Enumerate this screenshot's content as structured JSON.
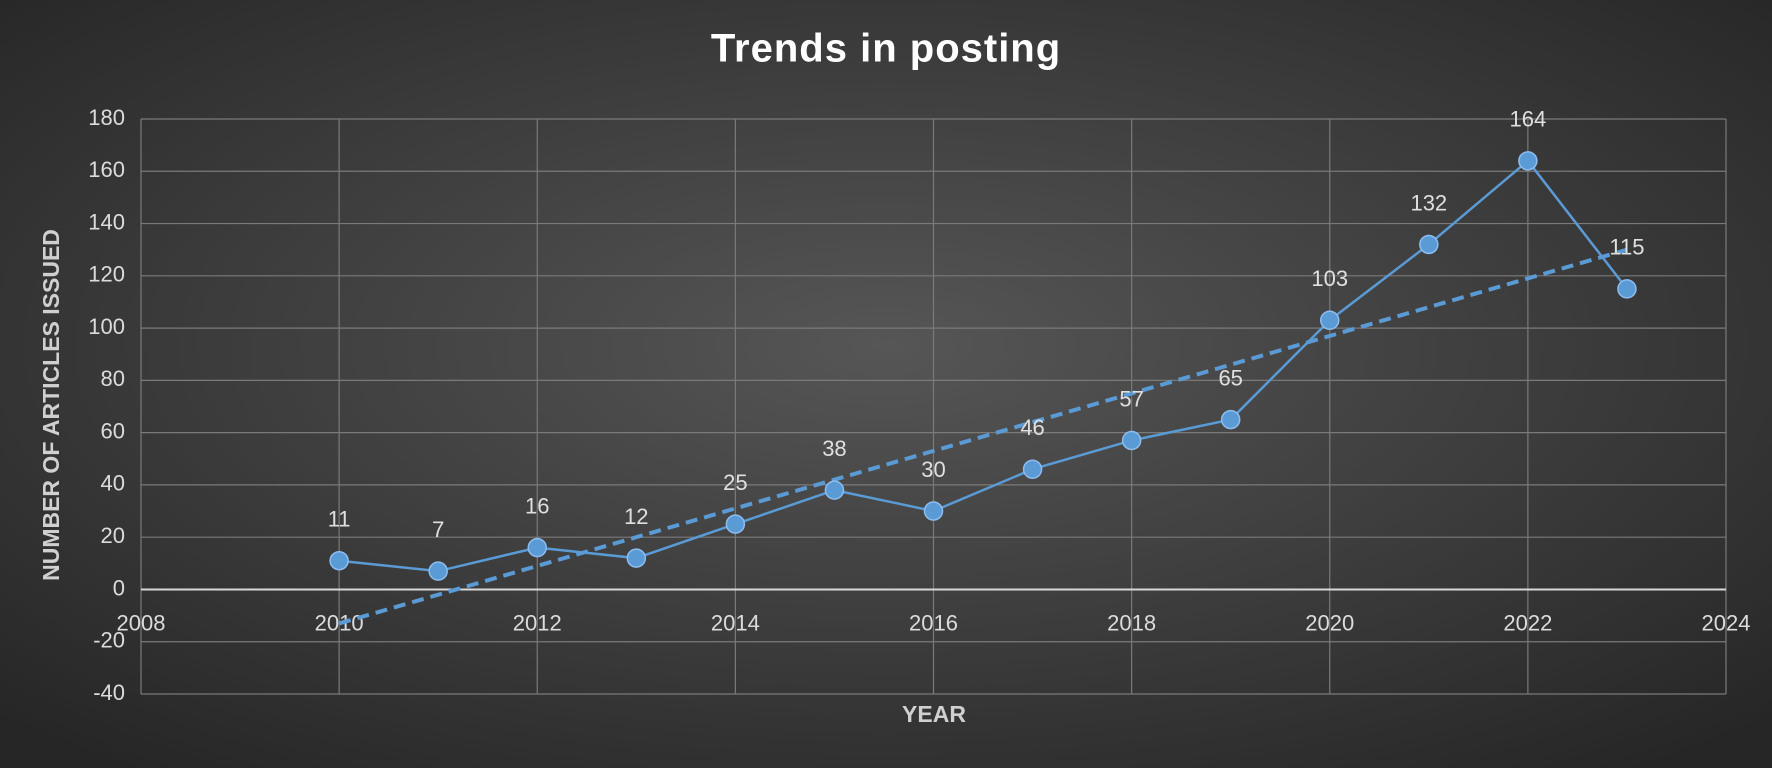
{
  "chart_data": {
    "type": "line",
    "title": "Trends in posting",
    "x_label": "YEAR",
    "y_label": "NUMBER OF ARTICLES ISSUED",
    "x": [
      2010,
      2011,
      2012,
      2013,
      2014,
      2015,
      2016,
      2017,
      2018,
      2019,
      2020,
      2021,
      2022,
      2023
    ],
    "series": [
      {
        "color": "#5b9bd5",
        "values": [
          11,
          7,
          16,
          12,
          25,
          38,
          30,
          46,
          57,
          65,
          103,
          132,
          164,
          115
        ]
      }
    ],
    "trendline": {
      "x": [
        2010,
        2023
      ],
      "values": [
        -13,
        130
      ],
      "color": "#5b9bd5"
    },
    "xlim": [
      2008,
      2024
    ],
    "xticks": [
      2008,
      2010,
      2012,
      2014,
      2016,
      2018,
      2020,
      2022,
      2024
    ],
    "ylim": [
      -40,
      180
    ],
    "yticks": [
      -40,
      -20,
      0,
      20,
      40,
      60,
      80,
      100,
      120,
      140,
      160,
      180
    ],
    "grid": true,
    "data_labels": true
  }
}
